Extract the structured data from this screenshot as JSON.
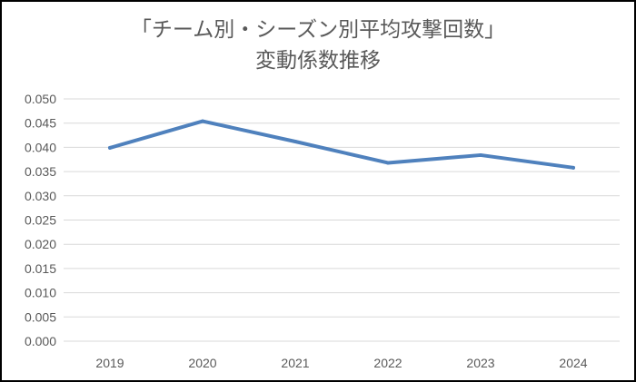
{
  "chart_data": {
    "type": "line",
    "title_line1": "「チーム別・シーズン別平均攻撃回数」",
    "title_line2": "変動係数推移",
    "xlabel": "",
    "ylabel": "",
    "categories": [
      "2019",
      "2020",
      "2021",
      "2022",
      "2023",
      "2024"
    ],
    "series": [
      {
        "values": [
          0.0399,
          0.0454,
          0.0412,
          0.0368,
          0.0384,
          0.0358
        ],
        "color": "#4f81bd"
      }
    ],
    "ylim": [
      0,
      0.05
    ],
    "yticks": [
      "0.000",
      "0.005",
      "0.010",
      "0.015",
      "0.020",
      "0.025",
      "0.030",
      "0.035",
      "0.040",
      "0.045",
      "0.050"
    ],
    "grid": true,
    "legend": "none"
  }
}
